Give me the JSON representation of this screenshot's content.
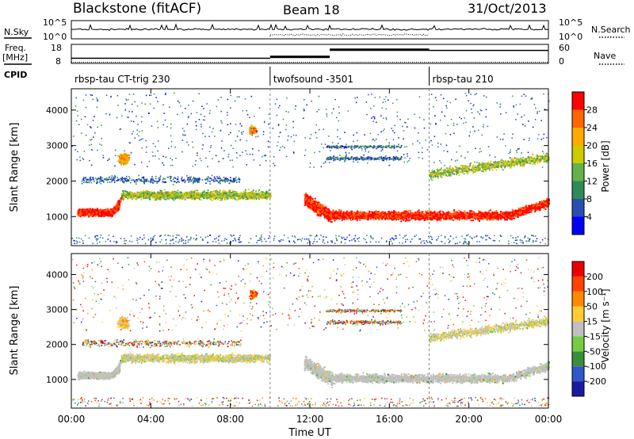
{
  "header": {
    "station": "Blackstone (fitACF)",
    "beam": "Beam 18",
    "date": "31/Oct/2013"
  },
  "left_labels": {
    "nsky": "N.Sky",
    "freq_line1": "Freq.",
    "freq_line2": "[MHz]",
    "cpid": "CPID"
  },
  "right_labels": {
    "nsearch": "N.Search",
    "nave": "Nave"
  },
  "noise_panel": {
    "left_ticks": [
      "10^5",
      "10^0"
    ],
    "right_ticks": [
      "10^5",
      "10^0"
    ]
  },
  "freq_panel": {
    "left_ticks": [
      "18",
      "8"
    ],
    "right_ticks": [
      "60",
      "0"
    ],
    "freq_segments": [
      {
        "start_hour": 0.0,
        "end_hour": 10.0,
        "freq_mhz": 10.5
      },
      {
        "start_hour": 10.0,
        "end_hour": 13.0,
        "freq_mhz": 11.5
      },
      {
        "start_hour": 13.0,
        "end_hour": 18.0,
        "freq_mhz": 16.5
      },
      {
        "start_hour": 18.0,
        "end_hour": 24.0,
        "freq_mhz": 16.0
      }
    ]
  },
  "cpid_segments": [
    {
      "label": "rbsp-tau CT-trig 230",
      "start_hour": 0.0
    },
    {
      "label": "twofsound -3501",
      "start_hour": 10.0
    },
    {
      "label": "rbsp-tau 210",
      "start_hour": 18.0
    }
  ],
  "power_panel": {
    "ylabel": "Slant Range [km]",
    "yticks": [
      "1000",
      "2000",
      "3000",
      "4000"
    ],
    "colorbar_label": "Power [dB]",
    "colorbar_ticks": [
      "4",
      "8",
      "12",
      "16",
      "20",
      "24",
      "28"
    ],
    "colors": [
      "#0000ff",
      "#2a4fb3",
      "#2e8b57",
      "#66b24a",
      "#cccc00",
      "#ffaa00",
      "#ff6600",
      "#ff0000"
    ]
  },
  "velocity_panel": {
    "ylabel": "Slant Range [km]",
    "yticks": [
      "1000",
      "2000",
      "3000",
      "4000"
    ],
    "colorbar_label": "Velocity [m s⁻¹]",
    "colorbar_ticks": [
      "200",
      "100",
      "50",
      "15",
      "-15",
      "-50",
      "-100",
      "-200"
    ],
    "colors": [
      "#1a1aa0",
      "#3355cc",
      "#3a8f3a",
      "#77cc44",
      "#c0c0c0",
      "#ffcc33",
      "#ff8800",
      "#ff4400",
      "#ee0000"
    ]
  },
  "x_axis": {
    "label": "Time UT",
    "ticks": [
      "00:00",
      "04:00",
      "08:00",
      "12:00",
      "16:00",
      "20:00",
      "00:00"
    ]
  },
  "chart_data": [
    {
      "type": "heatmap",
      "title": "",
      "quantity": "Power [dB]",
      "xlabel": "Time UT",
      "ylabel": "Slant Range [km]",
      "xlim_hours": [
        0,
        24
      ],
      "ylim": [
        180,
        4600
      ],
      "colorbar": [
        4,
        28
      ],
      "features": [
        {
          "start_hour": 0.5,
          "end_hour": 2.3,
          "range_low_km": 950,
          "range_high_km": 1300,
          "power_db": 28
        },
        {
          "start_hour": 11.8,
          "end_hour": 13.0,
          "range_low_km": 700,
          "range_high_km": 1200,
          "power_db": 24
        },
        {
          "start_hour": 13.0,
          "end_hour": 23.9,
          "range_low_km": 800,
          "range_high_km": 1400,
          "power_db": 26
        },
        {
          "start_hour": 2.5,
          "end_hour": 10.0,
          "range_low_km": 1450,
          "range_high_km": 1800,
          "power_db": 12
        }
      ]
    },
    {
      "type": "heatmap",
      "title": "",
      "quantity": "Velocity [m s⁻¹]",
      "xlabel": "Time UT",
      "ylabel": "Slant Range [km]",
      "xlim_hours": [
        0,
        24
      ],
      "ylim": [
        180,
        4600
      ],
      "colorbar": [
        -200,
        200
      ],
      "features": [
        {
          "start_hour": 1.0,
          "end_hour": 2.5,
          "range_low_km": 1100,
          "range_high_km": 1350,
          "velocity_ms": 0
        },
        {
          "start_hour": 13.0,
          "end_hour": 17.5,
          "range_low_km": 1000,
          "range_high_km": 1300,
          "velocity_ms": 0
        },
        {
          "start_hour": 17.5,
          "end_hour": 24.0,
          "range_low_km": 1100,
          "range_high_km": 1500,
          "velocity_ms": 0
        }
      ]
    }
  ]
}
